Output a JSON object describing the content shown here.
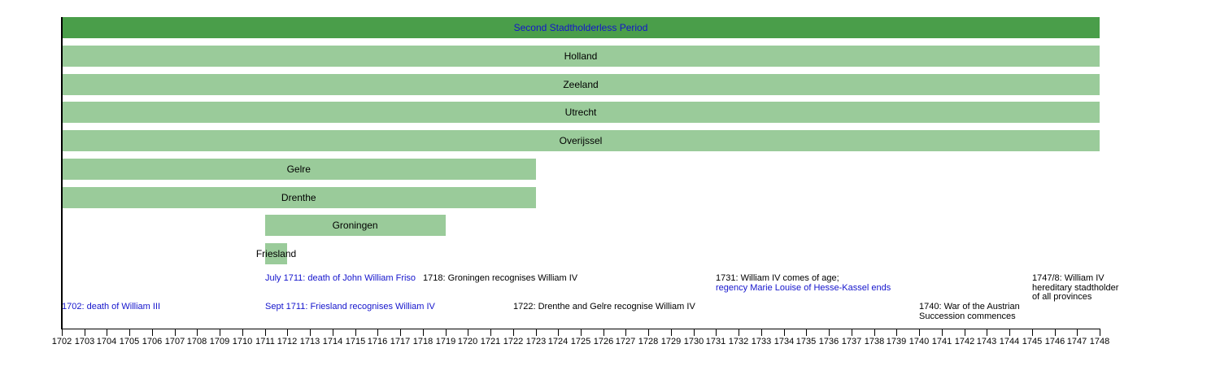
{
  "colors": {
    "bar_dark": "#4a9e4a",
    "bar_light": "#9acb9a",
    "link_text": "#1414cc",
    "plain_text": "#000000",
    "axis": "#000000",
    "background": "#ffffff"
  },
  "chart_data": {
    "type": "bar",
    "subtype": "gantt-timeline",
    "title": "Second Stadtholderless Period",
    "xlabel": "",
    "ylabel": "",
    "x_axis": {
      "min": 1702,
      "max": 1748,
      "tick_step": 1,
      "ticks": [
        1702,
        1703,
        1704,
        1705,
        1706,
        1707,
        1708,
        1709,
        1710,
        1711,
        1712,
        1713,
        1714,
        1715,
        1716,
        1717,
        1718,
        1719,
        1720,
        1721,
        1722,
        1723,
        1724,
        1725,
        1726,
        1727,
        1728,
        1729,
        1730,
        1731,
        1732,
        1733,
        1734,
        1735,
        1736,
        1737,
        1738,
        1739,
        1740,
        1741,
        1742,
        1743,
        1744,
        1745,
        1746,
        1747,
        1748
      ]
    },
    "legend": null,
    "grid": false,
    "rows": [
      {
        "label": "Second Stadtholderless Period",
        "start": 1702,
        "end": 1748,
        "style": "period",
        "label_style": "link"
      },
      {
        "label": "Holland",
        "start": 1702,
        "end": 1748,
        "style": "province",
        "label_style": "plain"
      },
      {
        "label": "Zeeland",
        "start": 1702,
        "end": 1748,
        "style": "province",
        "label_style": "plain"
      },
      {
        "label": "Utrecht",
        "start": 1702,
        "end": 1748,
        "style": "province",
        "label_style": "plain"
      },
      {
        "label": "Overijssel",
        "start": 1702,
        "end": 1748,
        "style": "province",
        "label_style": "plain"
      },
      {
        "label": "Gelre",
        "start": 1702,
        "end": 1723,
        "style": "province",
        "label_style": "plain"
      },
      {
        "label": "Drenthe",
        "start": 1702,
        "end": 1723,
        "style": "province",
        "label_style": "plain"
      },
      {
        "label": "Groningen",
        "start": 1711,
        "end": 1719,
        "style": "province",
        "label_style": "plain"
      },
      {
        "label": "Friesland",
        "start": 1711,
        "end": 1712,
        "style": "province",
        "label_style": "plain"
      }
    ],
    "annotations": [
      {
        "anchor_year": 1702,
        "row": 2,
        "lines": [
          {
            "text": "1702: death of William III",
            "color": "link"
          }
        ]
      },
      {
        "anchor_year": 1711,
        "row": 1,
        "lines": [
          {
            "text": "July 1711: death of John William Friso",
            "color": "link"
          }
        ]
      },
      {
        "anchor_year": 1711,
        "row": 2,
        "lines": [
          {
            "text": "Sept 1711: Friesland recognises William IV",
            "color": "link"
          }
        ]
      },
      {
        "anchor_year": 1718,
        "row": 1,
        "lines": [
          {
            "text": "1718: Groningen recognises William IV",
            "color": "plain"
          }
        ]
      },
      {
        "anchor_year": 1722,
        "row": 2,
        "lines": [
          {
            "text": "1722: Drenthe and Gelre recognise William IV",
            "color": "plain"
          }
        ]
      },
      {
        "anchor_year": 1731,
        "row": 1,
        "lines": [
          {
            "text": "1731: William IV comes of age;",
            "color": "plain"
          },
          {
            "text": "regency Marie Louise of Hesse-Kassel ends",
            "color": "link"
          }
        ]
      },
      {
        "anchor_year": 1740,
        "row": 2,
        "lines": [
          {
            "text": "1740: War of the Austrian",
            "color": "plain"
          },
          {
            "text": "Succession commences",
            "color": "plain"
          }
        ]
      },
      {
        "anchor_year": 1745,
        "row": 1,
        "lines": [
          {
            "text": "1747/8: William IV",
            "color": "plain"
          },
          {
            "text": "hereditary stadtholder",
            "color": "plain"
          },
          {
            "text": "of all provinces",
            "color": "plain"
          }
        ]
      }
    ]
  }
}
